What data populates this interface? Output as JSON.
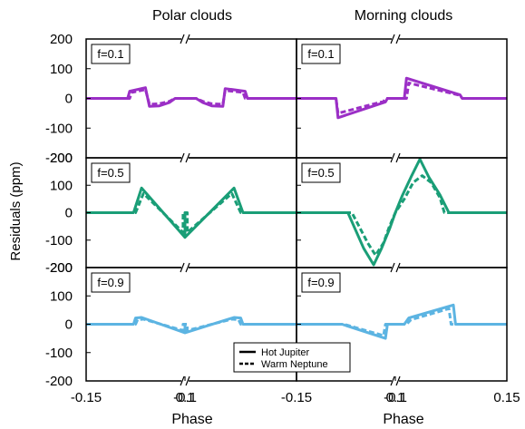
{
  "chart_data": {
    "type": "line",
    "column_titles": [
      "Polar clouds",
      "Morning clouds"
    ],
    "ylabel": "Residuals (ppm)",
    "xlabel": "Phase",
    "xlabel_right": "Phase",
    "ylim": [
      -200,
      200
    ],
    "yticks": [
      200,
      100,
      0,
      -100,
      -200
    ],
    "x_segments": [
      [
        -0.15,
        -0.1
      ],
      [
        0.1,
        0.15
      ]
    ],
    "xtick_labels": [
      "-0.15",
      "-0.1",
      "0.1",
      "-0.15",
      "-0.1",
      "0.1",
      "0.15"
    ],
    "grid": false,
    "legend": {
      "placement": "bottom-center",
      "entries": [
        {
          "label": "Hot Jupiter",
          "style": "solid"
        },
        {
          "label": "Warm Neptune",
          "style": "dashed"
        }
      ]
    },
    "rows": [
      {
        "label": "f=0.1",
        "color": "#9b2fc6"
      },
      {
        "label": "f=0.5",
        "color": "#1a9e77"
      },
      {
        "label": "f=0.9",
        "color": "#5cb4e2"
      }
    ],
    "panels": [
      {
        "row": 0,
        "col": 0,
        "series": [
          {
            "name": "Hot Jupiter",
            "style": "solid",
            "points": [
              [
                -0.15,
                0
              ],
              [
                -0.129,
                0
              ],
              [
                -0.128,
                24
              ],
              [
                -0.12,
                36
              ],
              [
                -0.118,
                -27
              ],
              [
                -0.113,
                -25
              ],
              [
                -0.108,
                -14
              ],
              [
                -0.105,
                0
              ],
              [
                -0.1,
                0
              ],
              [
                0.1,
                0
              ],
              [
                0.105,
                0
              ],
              [
                0.108,
                -14
              ],
              [
                0.112,
                -25
              ],
              [
                0.117,
                -27
              ],
              [
                0.118,
                33
              ],
              [
                0.127,
                24
              ],
              [
                0.128,
                0
              ],
              [
                0.15,
                0
              ]
            ]
          },
          {
            "name": "Warm Neptune",
            "style": "dashed",
            "points": [
              [
                -0.15,
                0
              ],
              [
                -0.128,
                0
              ],
              [
                -0.127,
                20
              ],
              [
                -0.12,
                30
              ],
              [
                -0.118,
                -20
              ],
              [
                -0.113,
                -18
              ],
              [
                -0.108,
                -10
              ],
              [
                -0.105,
                0
              ],
              [
                -0.1,
                0
              ],
              [
                0.1,
                0
              ],
              [
                0.105,
                0
              ],
              [
                0.108,
                -10
              ],
              [
                0.112,
                -18
              ],
              [
                0.117,
                -20
              ],
              [
                0.118,
                27
              ],
              [
                0.126,
                20
              ],
              [
                0.127,
                0
              ],
              [
                0.15,
                0
              ]
            ]
          }
        ]
      },
      {
        "row": 0,
        "col": 1,
        "series": [
          {
            "name": "Hot Jupiter",
            "style": "solid",
            "points": [
              [
                -0.15,
                0
              ],
              [
                -0.13,
                0
              ],
              [
                -0.129,
                -65
              ],
              [
                -0.105,
                -12
              ],
              [
                -0.104,
                0
              ],
              [
                -0.1,
                0
              ],
              [
                0.1,
                0
              ],
              [
                0.104,
                0
              ],
              [
                0.105,
                68
              ],
              [
                0.129,
                12
              ],
              [
                0.13,
                0
              ],
              [
                0.15,
                0
              ]
            ]
          },
          {
            "name": "Warm Neptune",
            "style": "dashed",
            "points": [
              [
                -0.15,
                0
              ],
              [
                -0.13,
                0
              ],
              [
                -0.129,
                -50
              ],
              [
                -0.106,
                -10
              ],
              [
                -0.105,
                0
              ],
              [
                -0.1,
                0
              ],
              [
                0.1,
                0
              ],
              [
                0.105,
                0
              ],
              [
                0.106,
                52
              ],
              [
                0.129,
                10
              ],
              [
                0.13,
                0
              ],
              [
                0.15,
                0
              ]
            ]
          }
        ]
      },
      {
        "row": 1,
        "col": 0,
        "series": [
          {
            "name": "Hot Jupiter",
            "style": "solid",
            "points": [
              [
                -0.15,
                0
              ],
              [
                -0.126,
                0
              ],
              [
                -0.122,
                90
              ],
              [
                -0.1,
                -90
              ],
              [
                -0.1,
                0
              ],
              [
                0.1,
                0
              ],
              [
                0.1,
                -90
              ],
              [
                0.122,
                90
              ],
              [
                0.126,
                0
              ],
              [
                0.15,
                0
              ]
            ]
          },
          {
            "name": "Warm Neptune",
            "style": "dashed",
            "points": [
              [
                -0.15,
                0
              ],
              [
                -0.125,
                0
              ],
              [
                -0.121,
                70
              ],
              [
                -0.101,
                -72
              ],
              [
                -0.101,
                0
              ],
              [
                0.101,
                0
              ],
              [
                0.101,
                -72
              ],
              [
                0.121,
                70
              ],
              [
                0.125,
                0
              ],
              [
                0.15,
                0
              ]
            ]
          }
        ]
      },
      {
        "row": 1,
        "col": 1,
        "series": [
          {
            "name": "Hot Jupiter",
            "style": "solid",
            "points": [
              [
                -0.15,
                0
              ],
              [
                -0.124,
                0
              ],
              [
                -0.12,
                -65
              ],
              [
                -0.116,
                -130
              ],
              [
                -0.111,
                -190
              ],
              [
                -0.107,
                -130
              ],
              [
                -0.103,
                -60
              ],
              [
                -0.1,
                0
              ],
              [
                0.1,
                0
              ],
              [
                0.103,
                60
              ],
              [
                0.107,
                130
              ],
              [
                0.111,
                195
              ],
              [
                0.115,
                130
              ],
              [
                0.12,
                65
              ],
              [
                0.124,
                0
              ],
              [
                0.15,
                0
              ]
            ]
          },
          {
            "name": "Warm Neptune",
            "style": "dashed",
            "points": [
              [
                -0.15,
                0
              ],
              [
                -0.122,
                0
              ],
              [
                -0.118,
                -55
              ],
              [
                -0.114,
                -110
              ],
              [
                -0.11,
                -155
              ],
              [
                -0.106,
                -110
              ],
              [
                -0.103,
                -50
              ],
              [
                -0.1,
                0
              ],
              [
                0.1,
                0
              ],
              [
                0.104,
                50
              ],
              [
                0.108,
                110
              ],
              [
                0.112,
                135
              ],
              [
                0.116,
                110
              ],
              [
                0.12,
                55
              ],
              [
                0.122,
                0
              ],
              [
                0.15,
                0
              ]
            ]
          }
        ]
      },
      {
        "row": 2,
        "col": 0,
        "series": [
          {
            "name": "Hot Jupiter",
            "style": "solid",
            "points": [
              [
                -0.15,
                0
              ],
              [
                -0.126,
                0
              ],
              [
                -0.125,
                22
              ],
              [
                -0.122,
                24
              ],
              [
                -0.1,
                -30
              ],
              [
                -0.1,
                0
              ],
              [
                0.1,
                0
              ],
              [
                0.1,
                -30
              ],
              [
                0.122,
                24
              ],
              [
                0.125,
                22
              ],
              [
                0.126,
                0
              ],
              [
                0.15,
                0
              ]
            ]
          },
          {
            "name": "Warm Neptune",
            "style": "dashed",
            "points": [
              [
                -0.15,
                0
              ],
              [
                -0.125,
                0
              ],
              [
                -0.124,
                16
              ],
              [
                -0.121,
                18
              ],
              [
                -0.101,
                -22
              ],
              [
                -0.101,
                0
              ],
              [
                0.101,
                0
              ],
              [
                0.101,
                -22
              ],
              [
                0.121,
                18
              ],
              [
                0.124,
                16
              ],
              [
                0.125,
                0
              ],
              [
                0.15,
                0
              ]
            ]
          }
        ]
      },
      {
        "row": 2,
        "col": 1,
        "series": [
          {
            "name": "Hot Jupiter",
            "style": "solid",
            "points": [
              [
                -0.15,
                0
              ],
              [
                -0.127,
                0
              ],
              [
                -0.105,
                -50
              ],
              [
                -0.104,
                0
              ],
              [
                -0.1,
                0
              ],
              [
                0.1,
                0
              ],
              [
                0.104,
                0
              ],
              [
                0.106,
                22
              ],
              [
                0.126,
                68
              ],
              [
                0.127,
                0
              ],
              [
                0.15,
                0
              ]
            ]
          },
          {
            "name": "Warm Neptune",
            "style": "dashed",
            "points": [
              [
                -0.15,
                0
              ],
              [
                -0.126,
                0
              ],
              [
                -0.106,
                -40
              ],
              [
                -0.105,
                0
              ],
              [
                -0.1,
                0
              ],
              [
                0.1,
                0
              ],
              [
                0.105,
                0
              ],
              [
                0.107,
                16
              ],
              [
                0.124,
                55
              ],
              [
                0.125,
                0
              ],
              [
                0.15,
                0
              ]
            ]
          }
        ]
      }
    ]
  }
}
